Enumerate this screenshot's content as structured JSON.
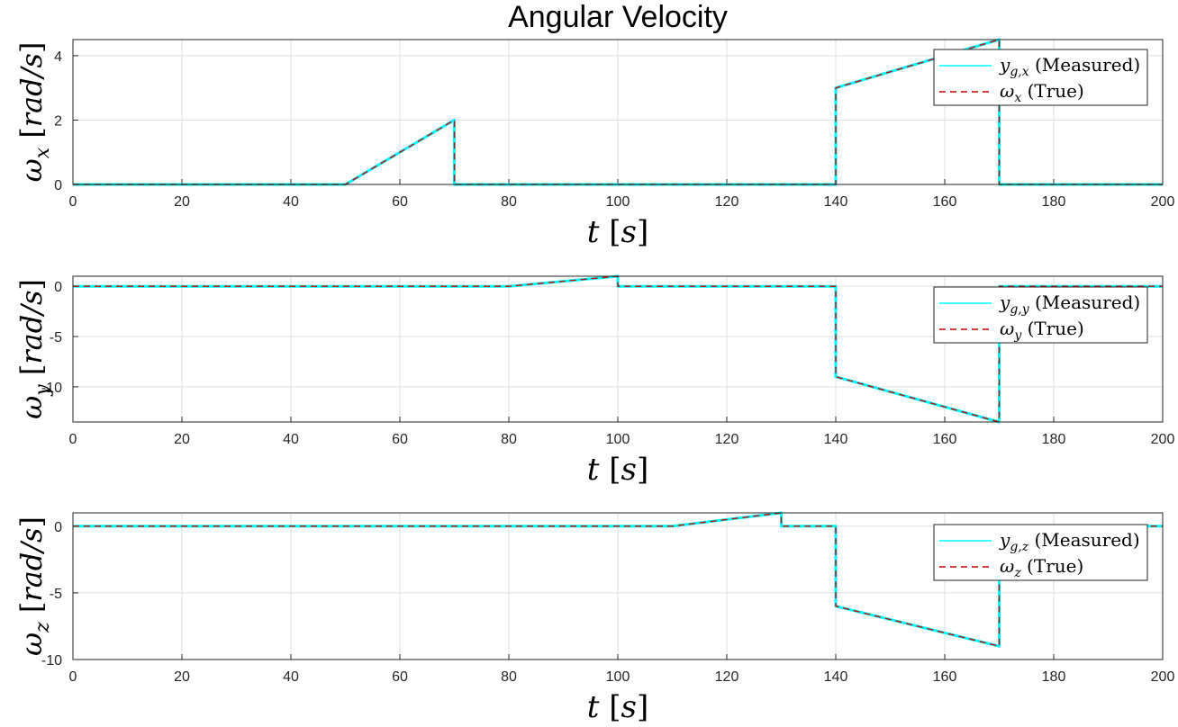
{
  "title": "Angular Velocity",
  "colors": {
    "measured": "#00ffff",
    "true": "#cc0000",
    "grid": "#dfdfdf",
    "axes": "#262626"
  },
  "chart_data": [
    {
      "type": "line",
      "title": "Angular Velocity",
      "xlabel": "t [s]",
      "ylabel": "ω_x [rad/s]",
      "xlim": [
        0,
        200
      ],
      "ylim": [
        0,
        4.5
      ],
      "xticks": [
        0,
        20,
        40,
        60,
        80,
        100,
        120,
        140,
        160,
        180,
        200
      ],
      "yticks": [
        0,
        2,
        4
      ],
      "grid": true,
      "legend_location": "top-right",
      "series": [
        {
          "label_var": "y",
          "label_sub": "g,x",
          "label_note": "(Measured)",
          "style": "solid",
          "color": "#00ffff",
          "x": [
            0,
            50,
            70,
            70,
            140,
            140,
            170,
            170,
            200
          ],
          "y": [
            0,
            0,
            2,
            0,
            0,
            3,
            4.5,
            0,
            0
          ]
        },
        {
          "label_var": "ω",
          "label_sub": "x",
          "label_note": "(True)",
          "style": "dashed",
          "color": "#cc0000",
          "x": [
            0,
            50,
            70,
            70,
            140,
            140,
            170,
            170,
            200
          ],
          "y": [
            0,
            0,
            2,
            0,
            0,
            3,
            4.5,
            0,
            0
          ]
        }
      ]
    },
    {
      "type": "line",
      "xlabel": "t [s]",
      "ylabel": "ω_y [rad/s]",
      "xlim": [
        0,
        200
      ],
      "ylim": [
        -13.5,
        1
      ],
      "xticks": [
        0,
        20,
        40,
        60,
        80,
        100,
        120,
        140,
        160,
        180,
        200
      ],
      "yticks": [
        -10,
        -5,
        0
      ],
      "grid": true,
      "legend_location": "top-right",
      "series": [
        {
          "label_var": "y",
          "label_sub": "g,y",
          "label_note": "(Measured)",
          "style": "solid",
          "color": "#00ffff",
          "x": [
            0,
            80,
            100,
            100,
            140,
            140,
            170,
            170,
            200
          ],
          "y": [
            0,
            0,
            1,
            0,
            0,
            -9,
            -13.5,
            0,
            0
          ]
        },
        {
          "label_var": "ω",
          "label_sub": "y",
          "label_note": "(True)",
          "style": "dashed",
          "color": "#cc0000",
          "x": [
            0,
            80,
            100,
            100,
            140,
            140,
            170,
            170,
            200
          ],
          "y": [
            0,
            0,
            1,
            0,
            0,
            -9,
            -13.5,
            0,
            0
          ]
        }
      ]
    },
    {
      "type": "line",
      "xlabel": "t [s]",
      "ylabel": "ω_z [rad/s]",
      "xlim": [
        0,
        200
      ],
      "ylim": [
        -10,
        1
      ],
      "xticks": [
        0,
        20,
        40,
        60,
        80,
        100,
        120,
        140,
        160,
        180,
        200
      ],
      "yticks": [
        -10,
        -5,
        0
      ],
      "grid": true,
      "legend_location": "top-right",
      "series": [
        {
          "label_var": "y",
          "label_sub": "g,z",
          "label_note": "(Measured)",
          "style": "solid",
          "color": "#00ffff",
          "x": [
            0,
            110,
            130,
            130,
            140,
            140,
            170,
            170,
            200
          ],
          "y": [
            0,
            0,
            1,
            0,
            0,
            -6,
            -9,
            0,
            0
          ]
        },
        {
          "label_var": "ω",
          "label_sub": "z",
          "label_note": "(True)",
          "style": "dashed",
          "color": "#cc0000",
          "x": [
            0,
            110,
            130,
            130,
            140,
            140,
            170,
            170,
            200
          ],
          "y": [
            0,
            0,
            1,
            0,
            0,
            -6,
            -9,
            0,
            0
          ]
        }
      ]
    }
  ]
}
